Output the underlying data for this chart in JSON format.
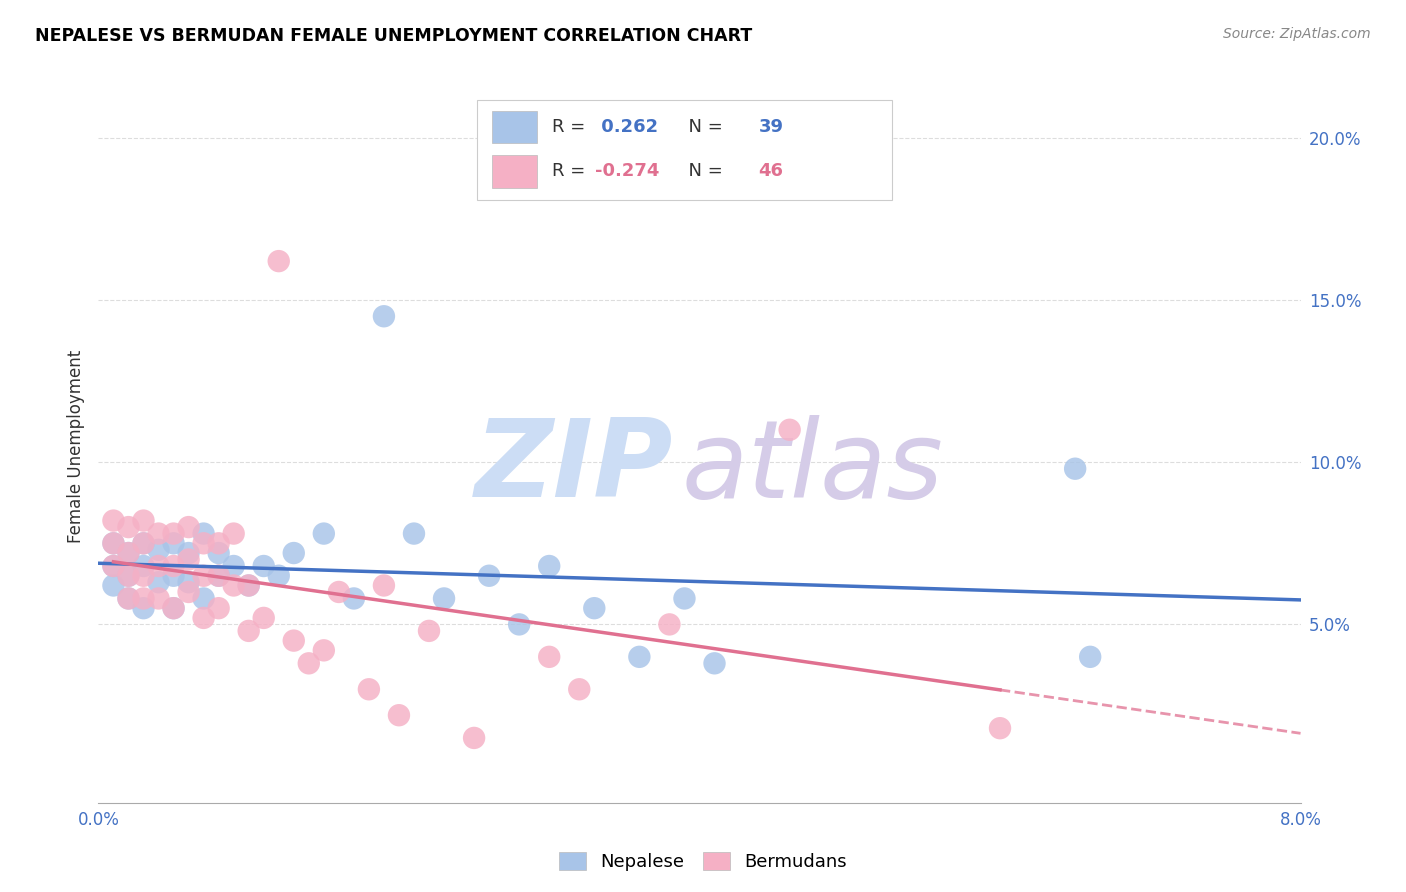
{
  "title": "NEPALESE VS BERMUDAN FEMALE UNEMPLOYMENT CORRELATION CHART",
  "source": "Source: ZipAtlas.com",
  "ylabel": "Female Unemployment",
  "xmin": 0.0,
  "xmax": 0.08,
  "ymin": -0.005,
  "ymax": 0.215,
  "yticks": [
    0.05,
    0.1,
    0.15,
    0.2
  ],
  "ytick_labels": [
    "5.0%",
    "10.0%",
    "15.0%",
    "20.0%"
  ],
  "nepalese_R": "0.262",
  "nepalese_N": "39",
  "bermudan_R": "-0.274",
  "bermudan_N": "46",
  "nepalese_color": "#a8c4e8",
  "bermudan_color": "#f5b0c5",
  "nepalese_line_color": "#4472c4",
  "bermudan_line_color": "#e07090",
  "grid_color": "#dddddd",
  "nepalese_x": [
    0.001,
    0.001,
    0.001,
    0.002,
    0.002,
    0.002,
    0.003,
    0.003,
    0.003,
    0.004,
    0.004,
    0.005,
    0.005,
    0.005,
    0.006,
    0.006,
    0.007,
    0.007,
    0.008,
    0.008,
    0.009,
    0.01,
    0.011,
    0.012,
    0.013,
    0.015,
    0.017,
    0.019,
    0.021,
    0.023,
    0.026,
    0.028,
    0.03,
    0.033,
    0.036,
    0.039,
    0.041,
    0.065,
    0.066
  ],
  "nepalese_y": [
    0.068,
    0.062,
    0.075,
    0.072,
    0.065,
    0.058,
    0.075,
    0.068,
    0.055,
    0.073,
    0.063,
    0.075,
    0.065,
    0.055,
    0.072,
    0.063,
    0.078,
    0.058,
    0.072,
    0.065,
    0.068,
    0.062,
    0.068,
    0.065,
    0.072,
    0.078,
    0.058,
    0.145,
    0.078,
    0.058,
    0.065,
    0.05,
    0.068,
    0.055,
    0.04,
    0.058,
    0.038,
    0.098,
    0.04
  ],
  "bermudan_x": [
    0.001,
    0.001,
    0.001,
    0.002,
    0.002,
    0.002,
    0.002,
    0.003,
    0.003,
    0.003,
    0.003,
    0.004,
    0.004,
    0.004,
    0.005,
    0.005,
    0.005,
    0.006,
    0.006,
    0.006,
    0.007,
    0.007,
    0.007,
    0.008,
    0.008,
    0.008,
    0.009,
    0.009,
    0.01,
    0.01,
    0.011,
    0.012,
    0.013,
    0.014,
    0.015,
    0.016,
    0.018,
    0.019,
    0.02,
    0.022,
    0.025,
    0.03,
    0.032,
    0.038,
    0.046,
    0.06
  ],
  "bermudan_y": [
    0.082,
    0.075,
    0.068,
    0.08,
    0.072,
    0.065,
    0.058,
    0.082,
    0.075,
    0.065,
    0.058,
    0.078,
    0.068,
    0.058,
    0.078,
    0.068,
    0.055,
    0.08,
    0.07,
    0.06,
    0.075,
    0.065,
    0.052,
    0.075,
    0.065,
    0.055,
    0.078,
    0.062,
    0.062,
    0.048,
    0.052,
    0.162,
    0.045,
    0.038,
    0.042,
    0.06,
    0.03,
    0.062,
    0.022,
    0.048,
    0.015,
    0.04,
    0.03,
    0.05,
    0.11,
    0.018
  ]
}
